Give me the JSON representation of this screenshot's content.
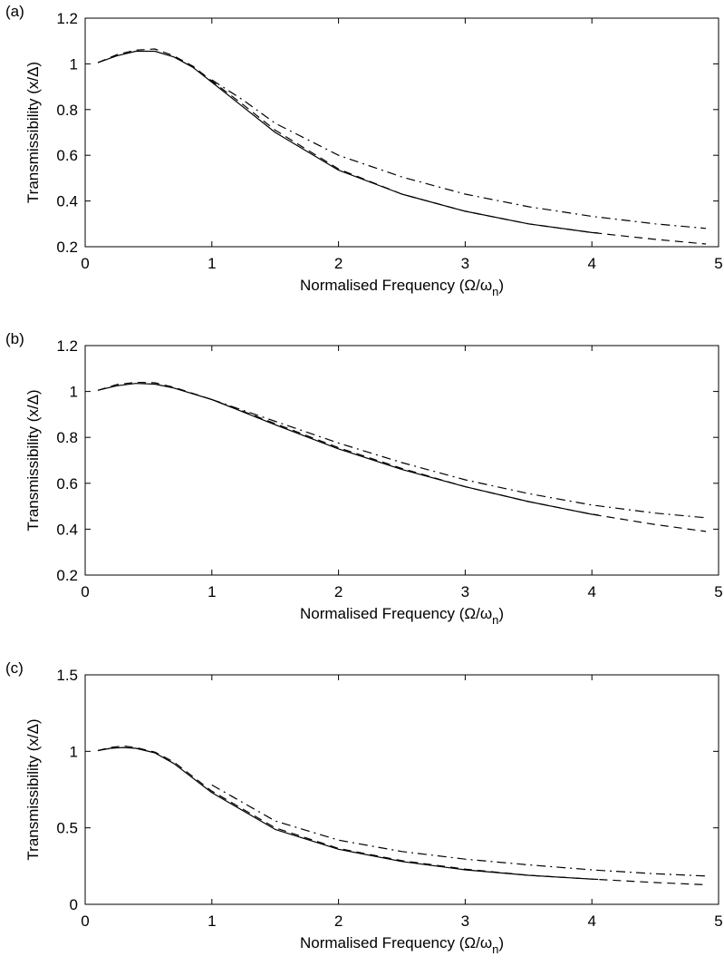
{
  "chart_data": [
    {
      "type": "line",
      "panel_label": "(a)",
      "xlabel": "Normalised Frequency (Ω/ω",
      "xlabel_sub": "n",
      "xlabel_tail": ")",
      "ylabel": "Transmissibility (x/Δ)",
      "xlim": [
        0,
        5
      ],
      "ylim": [
        0.2,
        1.2
      ],
      "xticks": [
        "0",
        "1",
        "2",
        "3",
        "4",
        "5"
      ],
      "yticks": [
        "0.2",
        "0.4",
        "0.6",
        "0.8",
        "1",
        "1.2"
      ],
      "series": [
        {
          "style": "solid",
          "x": [
            0.1,
            0.25,
            0.4,
            0.55,
            0.7,
            0.85,
            1.0,
            1.25,
            1.5,
            2.0,
            2.5,
            3.0,
            3.5,
            4.0,
            4.05
          ],
          "y": [
            1.005,
            1.035,
            1.055,
            1.055,
            1.03,
            0.985,
            0.92,
            0.81,
            0.7,
            0.535,
            0.43,
            0.355,
            0.3,
            0.262,
            0.26
          ]
        },
        {
          "style": "dashed",
          "x": [
            0.1,
            0.25,
            0.4,
            0.55,
            0.7,
            0.85,
            1.0,
            1.25,
            1.5,
            2.0,
            2.5,
            3.0,
            3.5,
            4.0,
            4.5,
            4.9
          ],
          "y": [
            1.005,
            1.04,
            1.06,
            1.065,
            1.035,
            0.99,
            0.925,
            0.82,
            0.71,
            0.54,
            0.43,
            0.355,
            0.3,
            0.262,
            0.232,
            0.212
          ]
        },
        {
          "style": "dashdot",
          "x": [
            1.0,
            1.25,
            1.5,
            2.0,
            2.5,
            3.0,
            3.5,
            4.0,
            4.5,
            4.9
          ],
          "y": [
            0.93,
            0.84,
            0.74,
            0.6,
            0.505,
            0.43,
            0.375,
            0.333,
            0.3,
            0.28
          ]
        }
      ]
    },
    {
      "type": "line",
      "panel_label": "(b)",
      "xlabel": "Normalised Frequency (Ω/ω",
      "xlabel_sub": "n",
      "xlabel_tail": ")",
      "ylabel": "Transmissibility (x/Δ)",
      "xlim": [
        0,
        5
      ],
      "ylim": [
        0.2,
        1.2
      ],
      "xticks": [
        "0",
        "1",
        "2",
        "3",
        "4",
        "5"
      ],
      "yticks": [
        "0.2",
        "0.4",
        "0.6",
        "0.8",
        "1",
        "1.2"
      ],
      "series": [
        {
          "style": "solid",
          "x": [
            0.1,
            0.25,
            0.4,
            0.55,
            0.7,
            1.0,
            1.5,
            2.0,
            2.5,
            3.0,
            3.5,
            4.0,
            4.05
          ],
          "y": [
            1.005,
            1.025,
            1.035,
            1.032,
            1.015,
            0.965,
            0.855,
            0.75,
            0.66,
            0.585,
            0.52,
            0.465,
            0.462
          ]
        },
        {
          "style": "dashed",
          "x": [
            0.1,
            0.25,
            0.4,
            0.55,
            0.7,
            1.0,
            1.5,
            2.0,
            2.5,
            3.0,
            3.5,
            4.0,
            4.5,
            4.9
          ],
          "y": [
            1.005,
            1.03,
            1.04,
            1.038,
            1.018,
            0.965,
            0.86,
            0.755,
            0.665,
            0.585,
            0.52,
            0.465,
            0.42,
            0.39
          ]
        },
        {
          "style": "dashdot",
          "x": [
            1.0,
            1.5,
            2.0,
            2.5,
            3.0,
            3.5,
            4.0,
            4.5,
            4.9
          ],
          "y": [
            0.965,
            0.87,
            0.775,
            0.69,
            0.615,
            0.555,
            0.505,
            0.47,
            0.45
          ]
        }
      ]
    },
    {
      "type": "line",
      "panel_label": "(c)",
      "xlabel": "Normalised Frequency (Ω/ω",
      "xlabel_sub": "n",
      "xlabel_tail": ")",
      "ylabel": "Transmissibility (x/Δ)",
      "xlim": [
        0,
        5
      ],
      "ylim": [
        0,
        1.5
      ],
      "xticks": [
        "0",
        "1",
        "2",
        "3",
        "4",
        "5"
      ],
      "yticks": [
        "0",
        "0.5",
        "1",
        "1.5"
      ],
      "series": [
        {
          "style": "solid",
          "x": [
            0.1,
            0.2,
            0.3,
            0.4,
            0.55,
            0.7,
            1.0,
            1.5,
            2.0,
            2.5,
            3.0,
            3.5,
            4.0,
            4.05
          ],
          "y": [
            1.005,
            1.02,
            1.025,
            1.02,
            0.99,
            0.92,
            0.73,
            0.49,
            0.36,
            0.28,
            0.225,
            0.19,
            0.165,
            0.163
          ]
        },
        {
          "style": "dashed",
          "x": [
            0.1,
            0.2,
            0.3,
            0.4,
            0.55,
            0.7,
            1.0,
            1.5,
            2.0,
            2.5,
            3.0,
            3.5,
            4.0,
            4.5,
            4.9
          ],
          "y": [
            1.005,
            1.025,
            1.035,
            1.025,
            0.995,
            0.93,
            0.74,
            0.5,
            0.365,
            0.285,
            0.23,
            0.19,
            0.165,
            0.142,
            0.128
          ]
        },
        {
          "style": "dashdot",
          "x": [
            1.0,
            1.5,
            2.0,
            2.5,
            3.0,
            3.5,
            4.0,
            4.5,
            4.9
          ],
          "y": [
            0.78,
            0.545,
            0.42,
            0.345,
            0.295,
            0.258,
            0.225,
            0.2,
            0.185
          ]
        }
      ]
    }
  ]
}
